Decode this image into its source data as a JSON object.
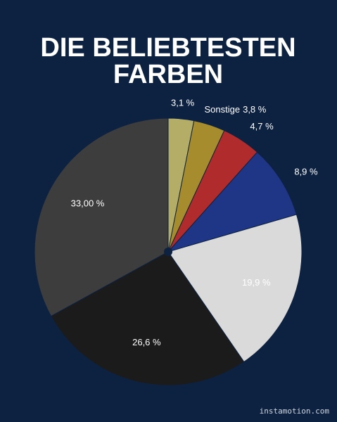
{
  "chart_data": {
    "type": "pie",
    "title": [
      "DIE BELIEBTESTEN",
      "FARBEN"
    ],
    "categories": [
      null,
      "Sonstige",
      null,
      null,
      null,
      null,
      null
    ],
    "values": [
      3.1,
      3.8,
      4.7,
      8.9,
      19.9,
      26.6,
      33.0
    ],
    "value_labels": [
      "3,1 %",
      "3,8 %",
      "4,7  %",
      "8,9 %",
      "19,9 %",
      "26,6 %",
      "33,00 %"
    ],
    "colors": [
      "#b3ad68",
      "#a68c2c",
      "#b02b2b",
      "#1f3585",
      "#dadada",
      "#1b1b1b",
      "#3d3d3d"
    ],
    "source": "instamotion.com"
  }
}
